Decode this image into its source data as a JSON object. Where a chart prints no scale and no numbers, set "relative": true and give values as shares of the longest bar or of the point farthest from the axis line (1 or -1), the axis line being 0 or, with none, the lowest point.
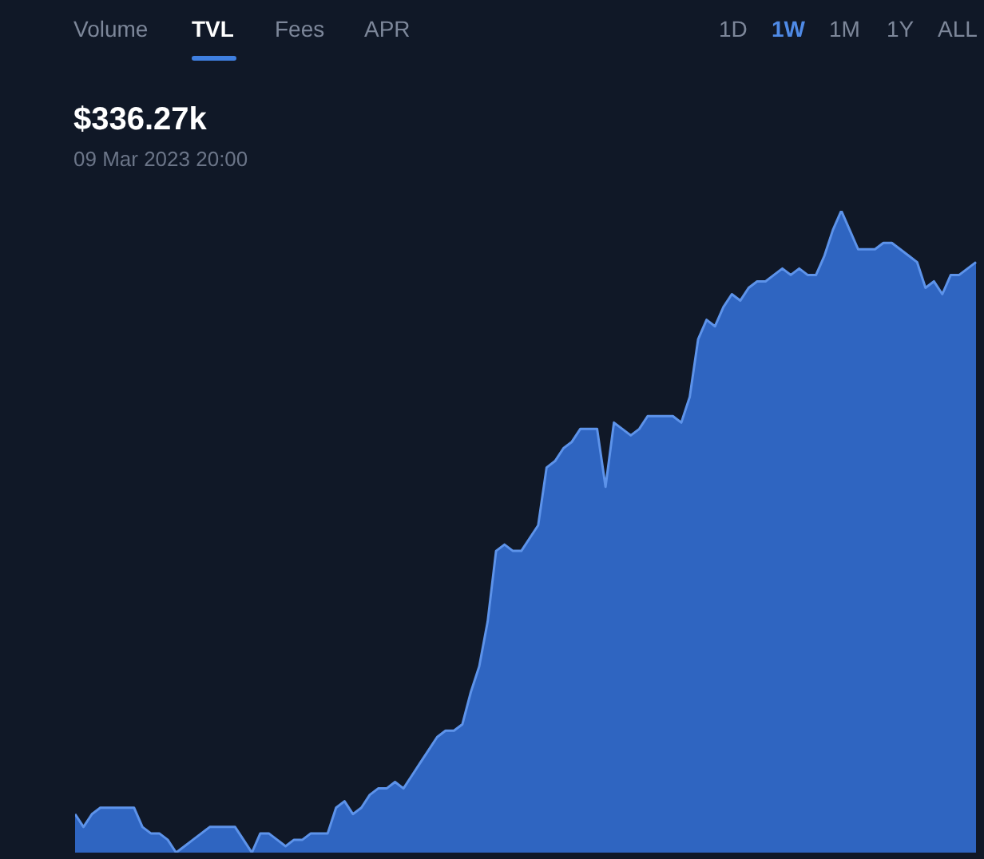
{
  "chart_data": {
    "type": "area",
    "title": "$336.27k",
    "subtitle": "09 Mar 2023 20:00",
    "annotations": [
      "Volume",
      "TVL",
      "Fees",
      "APR",
      "1D",
      "1W",
      "1M",
      "1Y",
      "ALL"
    ],
    "relative": true,
    "marker": "none",
    "categories": [
      null,
      null,
      null,
      null,
      null,
      null,
      null,
      null,
      null,
      null,
      null,
      null,
      null,
      null,
      null,
      null,
      null,
      null,
      null,
      null,
      null,
      null,
      null,
      null,
      null,
      null,
      null,
      null,
      null,
      null,
      null,
      null,
      null,
      null,
      null,
      null,
      null,
      null,
      null,
      null,
      null,
      null,
      null,
      null,
      null,
      null,
      null,
      null,
      null,
      null,
      null,
      null,
      null,
      null,
      null,
      null,
      null,
      null,
      null,
      null,
      null,
      null,
      null,
      null,
      null,
      null,
      null,
      null,
      null,
      null,
      null,
      null,
      null,
      null,
      null,
      null,
      null,
      null,
      null,
      null,
      null,
      null,
      null,
      null,
      null,
      null,
      null,
      null,
      null,
      null,
      null,
      null,
      null,
      null,
      null,
      null,
      null,
      null,
      null,
      null,
      null,
      null,
      null,
      null,
      null,
      null,
      null,
      null
    ],
    "series": [
      {
        "color": "#2f65c1",
        "values": [
          0.06,
          0.04,
          0.06,
          0.07,
          0.07,
          0.07,
          0.07,
          0.07,
          0.04,
          0.03,
          0.03,
          0.02,
          0,
          0.01,
          0.02,
          0.03,
          0.04,
          0.04,
          0.04,
          0.04,
          0.02,
          0,
          0.03,
          0.03,
          0.02,
          0.01,
          0.02,
          0.02,
          0.03,
          0.03,
          0.03,
          0.07,
          0.08,
          0.06,
          0.07,
          0.09,
          0.1,
          0.1,
          0.11,
          0.1,
          0.12,
          0.14,
          0.16,
          0.18,
          0.19,
          0.19,
          0.2,
          0.25,
          0.29,
          0.36,
          0.47,
          0.48,
          0.47,
          0.47,
          0.49,
          0.51,
          0.6,
          0.61,
          0.63,
          0.64,
          0.66,
          0.66,
          0.66,
          0.57,
          0.67,
          0.66,
          0.65,
          0.66,
          0.68,
          0.68,
          0.68,
          0.68,
          0.67,
          0.71,
          0.8,
          0.83,
          0.82,
          0.85,
          0.87,
          0.86,
          0.88,
          0.89,
          0.89,
          0.9,
          0.91,
          0.9,
          0.91,
          0.9,
          0.9,
          0.93,
          0.97,
          1,
          0.97,
          0.94,
          0.94,
          0.94,
          0.95,
          0.95,
          0.94,
          0.93,
          0.92,
          0.88,
          0.89,
          0.87,
          0.9,
          0.9,
          0.91,
          0.92
        ]
      }
    ]
  }
}
